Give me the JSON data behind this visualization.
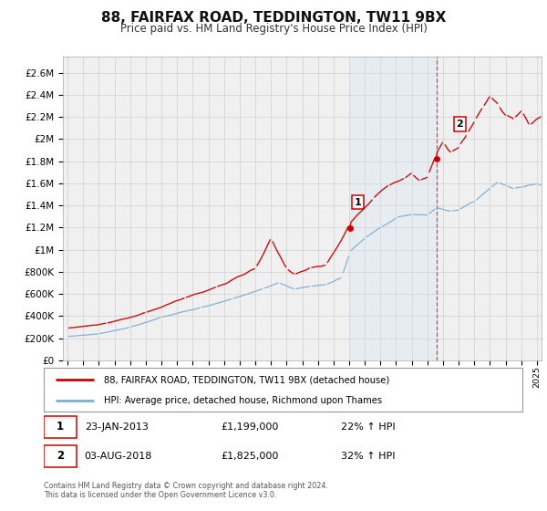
{
  "title": "88, FAIRFAX ROAD, TEDDINGTON, TW11 9BX",
  "subtitle": "Price paid vs. HM Land Registry's House Price Index (HPI)",
  "legend_line1": "88, FAIRFAX ROAD, TEDDINGTON, TW11 9BX (detached house)",
  "legend_line2": "HPI: Average price, detached house, Richmond upon Thames",
  "sale1_date": "23-JAN-2013",
  "sale1_price": "£1,199,000",
  "sale1_hpi": "22% ↑ HPI",
  "sale1_date_num": 2013.06,
  "sale1_price_val": 1199000,
  "sale2_date": "03-AUG-2018",
  "sale2_price": "£1,825,000",
  "sale2_hpi": "32% ↑ HPI",
  "sale2_date_num": 2018.58,
  "sale2_price_val": 1825000,
  "property_color": "#cc0000",
  "hpi_color": "#7bafd4",
  "background_color": "#f0f0f0",
  "grid_color": "#d0d0d0",
  "vline_color": "#cc3333",
  "shade_color": "#d0e4f5",
  "ylim": [
    0,
    2700000
  ],
  "xlim_start": 1994.7,
  "xlim_end": 2025.3,
  "footer": "Contains HM Land Registry data © Crown copyright and database right 2024.\nThis data is licensed under the Open Government Licence v3.0."
}
